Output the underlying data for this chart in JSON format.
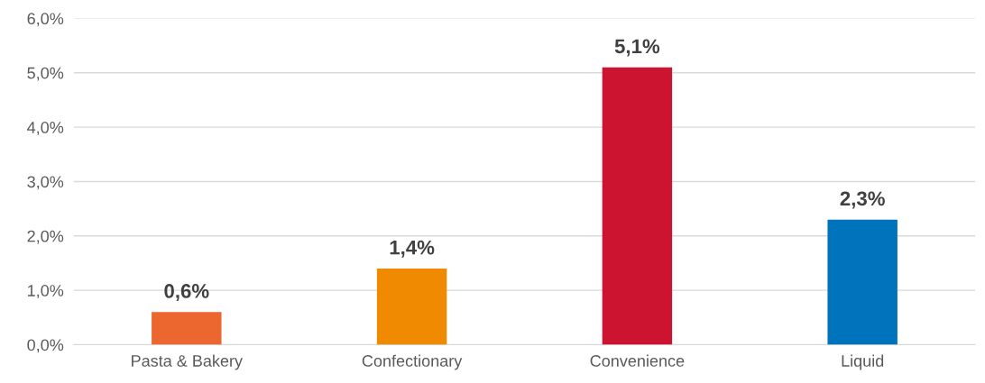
{
  "chart_data": {
    "type": "bar",
    "categories": [
      "Pasta & Bakery",
      "Confectionary",
      "Convenience",
      "Liquid"
    ],
    "values": [
      0.6,
      1.4,
      5.1,
      2.3
    ],
    "colors": [
      "#ec6730",
      "#f08a00",
      "#cc1430",
      "#0073bd"
    ],
    "value_labels": [
      "0,6%",
      "1,4%",
      "5,1%",
      "2,3%"
    ],
    "ylim": [
      0,
      6
    ],
    "yticks": [
      {
        "value": 0,
        "label": "0,0%"
      },
      {
        "value": 1,
        "label": "1,0%"
      },
      {
        "value": 2,
        "label": "2,0%"
      },
      {
        "value": 3,
        "label": "3,0%"
      },
      {
        "value": 4,
        "label": "4,0%"
      },
      {
        "value": 5,
        "label": "5,0%"
      },
      {
        "value": 6,
        "label": "6,0%"
      }
    ],
    "grid": "y",
    "legend": false
  }
}
